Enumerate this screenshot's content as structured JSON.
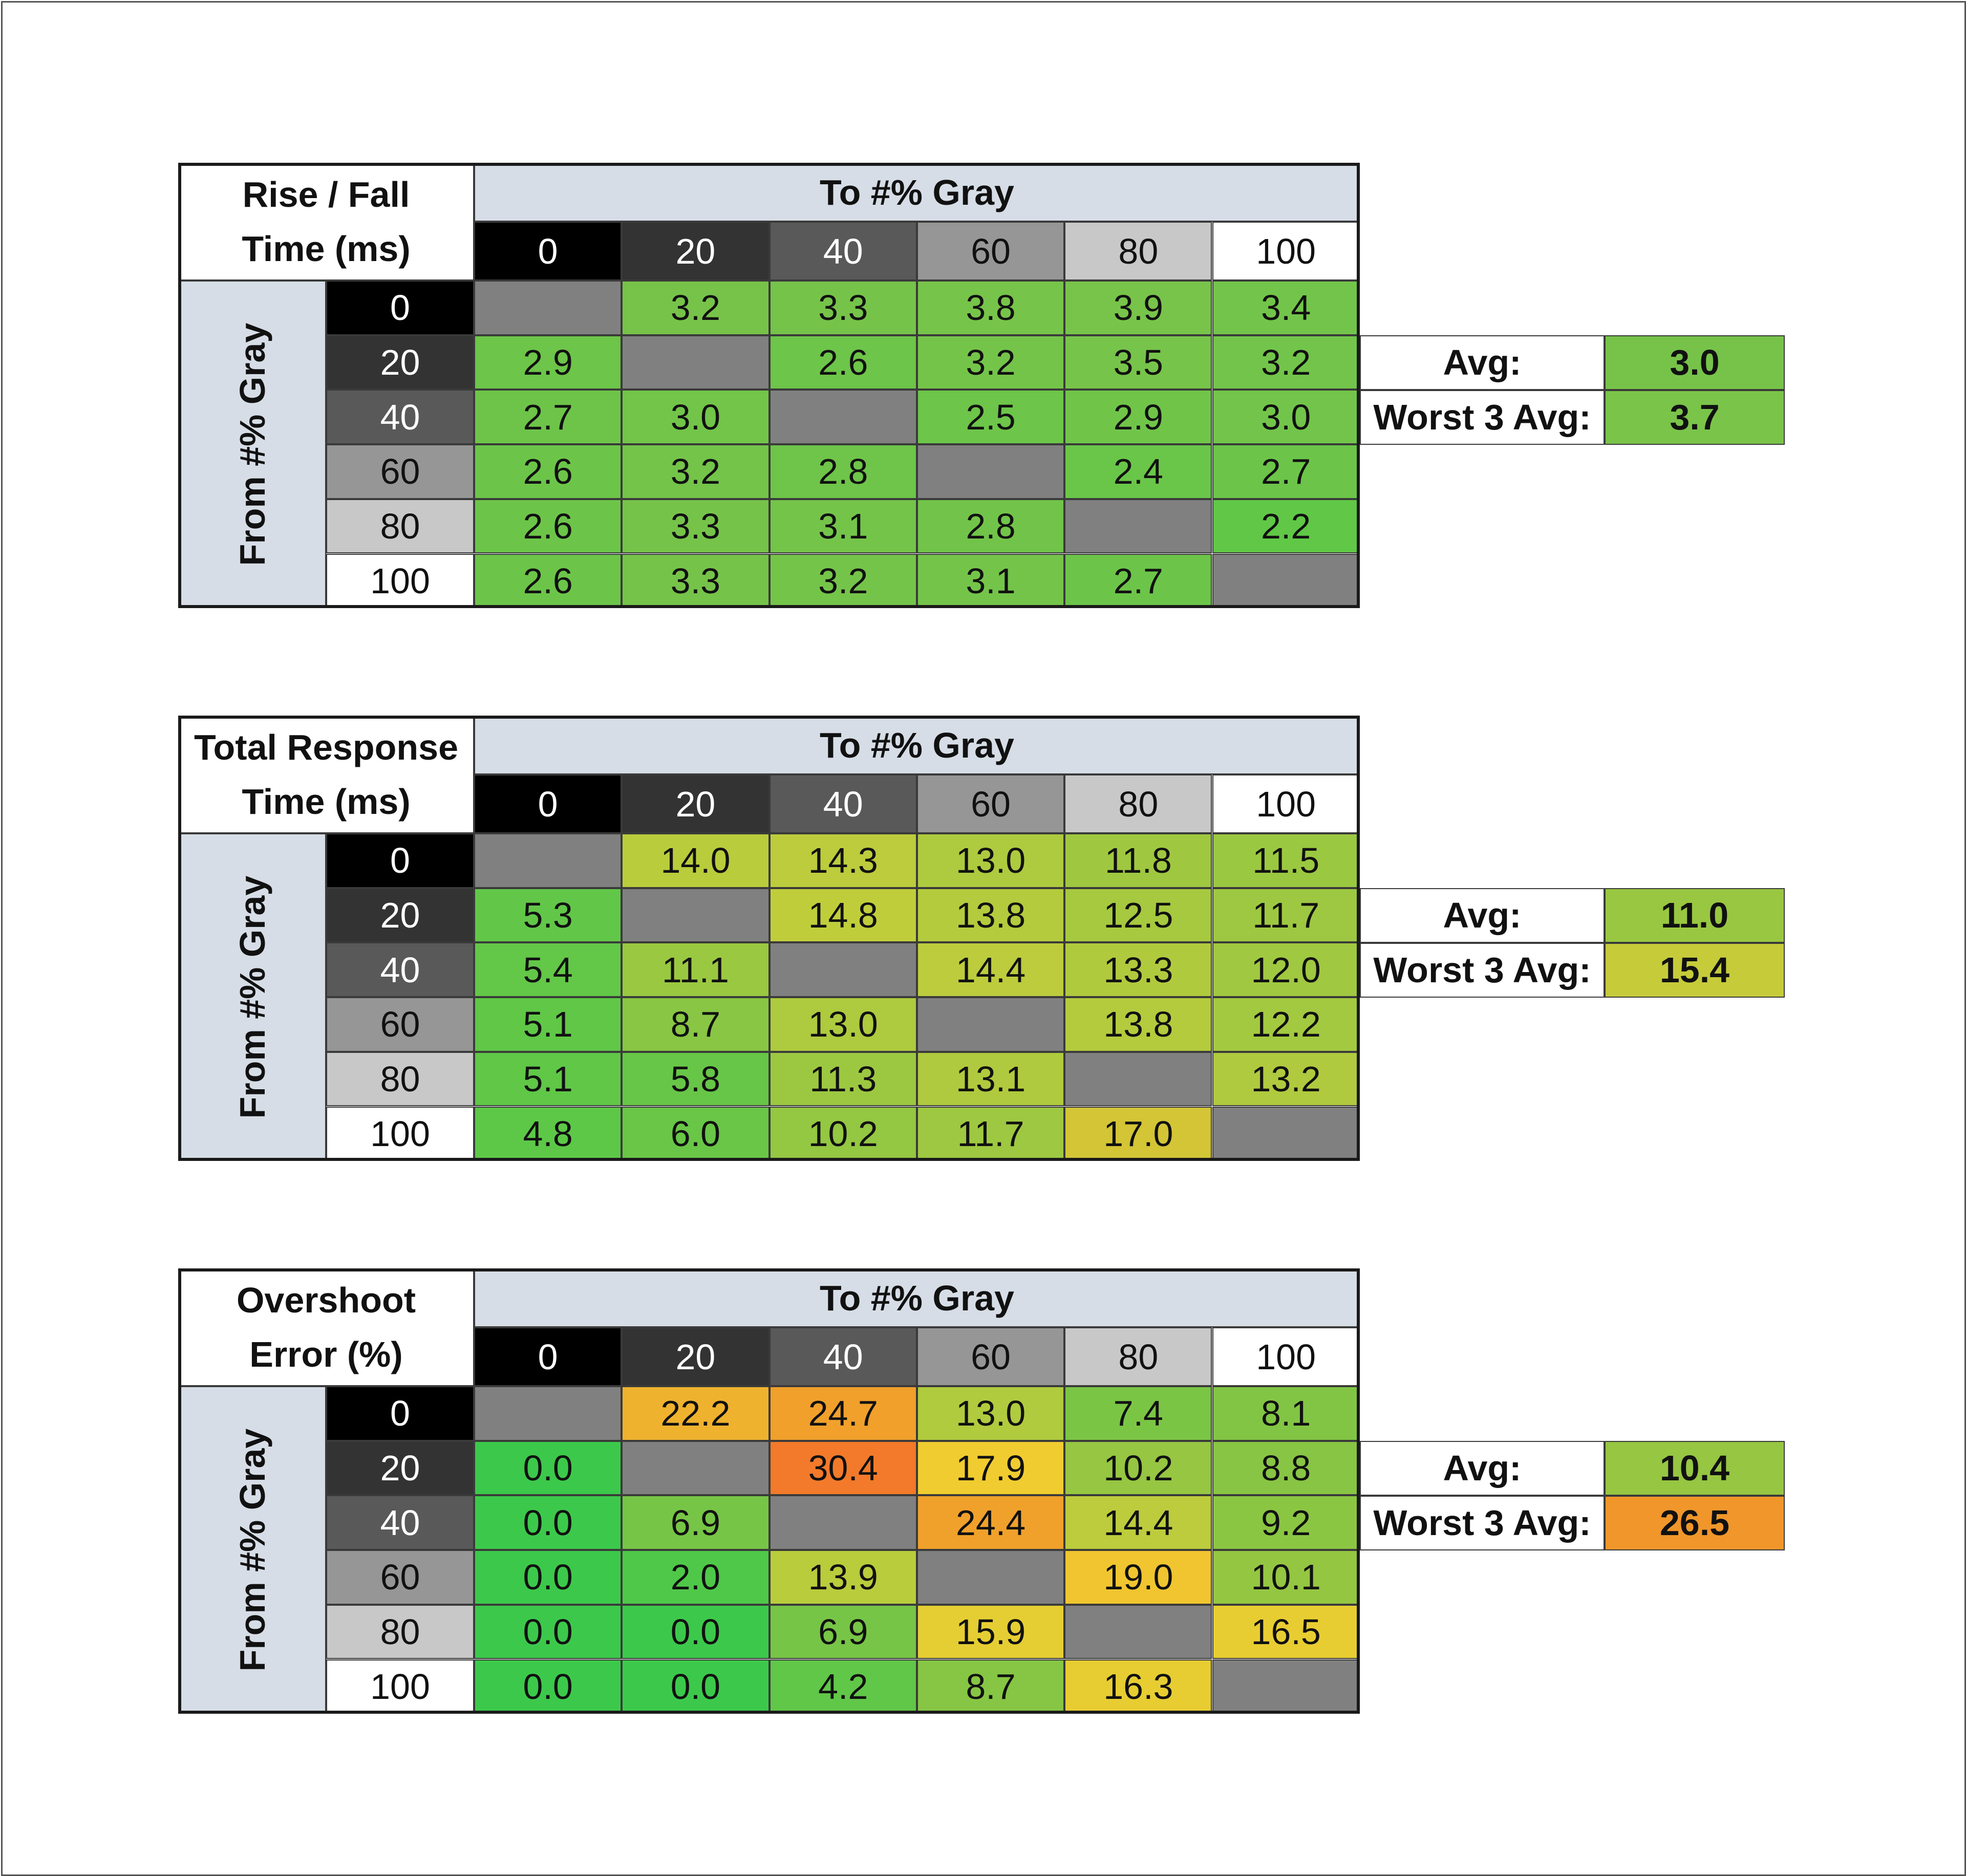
{
  "chart_data": [
    {
      "type": "heatmap",
      "title_lines": [
        "Rise / Fall",
        "Time (ms)"
      ],
      "column_header": "To #% Gray",
      "row_header": "From #% Gray",
      "columns": [
        "0",
        "20",
        "40",
        "60",
        "80",
        "100"
      ],
      "rows": [
        "0",
        "20",
        "40",
        "60",
        "80",
        "100"
      ],
      "values": [
        [
          null,
          "3.2",
          "3.3",
          "3.8",
          "3.9",
          "3.4"
        ],
        [
          "2.9",
          null,
          "2.6",
          "3.2",
          "3.5",
          "3.2"
        ],
        [
          "2.7",
          "3.0",
          null,
          "2.5",
          "2.9",
          "3.0"
        ],
        [
          "2.6",
          "3.2",
          "2.8",
          null,
          "2.4",
          "2.7"
        ],
        [
          "2.6",
          "3.3",
          "3.1",
          "2.8",
          null,
          "2.2"
        ],
        [
          "2.6",
          "3.3",
          "3.2",
          "3.1",
          "2.7",
          null
        ]
      ],
      "colors": [
        [
          "#808080",
          "#77c34a",
          "#76c34a",
          "#77c44a",
          "#78c44a",
          "#72c54a"
        ],
        [
          "#6dc549",
          "#808080",
          "#6dc549",
          "#75c44a",
          "#77c44a",
          "#72c54a"
        ],
        [
          "#6ec449",
          "#72c549",
          "#808080",
          "#6dc549",
          "#70c549",
          "#72c54a"
        ],
        [
          "#6cc549",
          "#74c44a",
          "#6ec549",
          "#808080",
          "#6ac649",
          "#6cc549"
        ],
        [
          "#6cc549",
          "#76c34a",
          "#74c44a",
          "#71c449",
          "#808080",
          "#60c846"
        ],
        [
          "#6cc549",
          "#76c34a",
          "#75c44a",
          "#74c44a",
          "#6cc549",
          "#808080"
        ]
      ],
      "summary": {
        "avg_label": "Avg:",
        "avg": "3.0",
        "avg_color": "#77c34a",
        "worst_label": "Worst 3 Avg:",
        "worst": "3.7",
        "worst_color": "#7ac44a"
      }
    },
    {
      "type": "heatmap",
      "title_lines": [
        "Total Response",
        "Time (ms)"
      ],
      "column_header": "To #% Gray",
      "row_header": "From #% Gray",
      "columns": [
        "0",
        "20",
        "40",
        "60",
        "80",
        "100"
      ],
      "rows": [
        "0",
        "20",
        "40",
        "60",
        "80",
        "100"
      ],
      "values": [
        [
          null,
          "14.0",
          "14.3",
          "13.0",
          "11.8",
          "11.5"
        ],
        [
          "5.3",
          null,
          "14.8",
          "13.8",
          "12.5",
          "11.7"
        ],
        [
          "5.4",
          "11.1",
          null,
          "14.4",
          "13.3",
          "12.0"
        ],
        [
          "5.1",
          "8.7",
          "13.0",
          null,
          "13.8",
          "12.2"
        ],
        [
          "5.1",
          "5.8",
          "11.3",
          "13.1",
          null,
          "13.2"
        ],
        [
          "4.8",
          "6.0",
          "10.2",
          "11.7",
          "17.0",
          null
        ]
      ],
      "colors": [
        [
          "#808080",
          "#b9cc3c",
          "#bccc3c",
          "#aeca3e",
          "#9fc840",
          "#9bc841"
        ],
        [
          "#62c748",
          "#808080",
          "#c0cd3b",
          "#b4cb3d",
          "#a6c93f",
          "#9ec841"
        ],
        [
          "#63c748",
          "#9ac841",
          "#808080",
          "#bccc3c",
          "#b0ca3e",
          "#a0c840"
        ],
        [
          "#60c747",
          "#88c644",
          "#aeca3e",
          "#808080",
          "#b4cb3d",
          "#a3c940"
        ],
        [
          "#60c747",
          "#67c647",
          "#9cc841",
          "#afca3e",
          "#808080",
          "#afca3e"
        ],
        [
          "#5dc847",
          "#69c647",
          "#94c742",
          "#9ec841",
          "#d3c535",
          "#808080"
        ]
      ],
      "summary": {
        "avg_label": "Avg:",
        "avg": "11.0",
        "avg_color": "#99c741",
        "worst_label": "Worst 3 Avg:",
        "worst": "15.4",
        "worst_color": "#c6cb3a"
      }
    },
    {
      "type": "heatmap",
      "title_lines": [
        "Overshoot",
        "Error (%)"
      ],
      "column_header": "To #% Gray",
      "row_header": "From #% Gray",
      "columns": [
        "0",
        "20",
        "40",
        "60",
        "80",
        "100"
      ],
      "rows": [
        "0",
        "20",
        "40",
        "60",
        "80",
        "100"
      ],
      "values": [
        [
          null,
          "22.2",
          "24.7",
          "13.0",
          "7.4",
          "8.1"
        ],
        [
          "0.0",
          null,
          "30.4",
          "17.9",
          "10.2",
          "8.8"
        ],
        [
          "0.0",
          "6.9",
          null,
          "24.4",
          "14.4",
          "9.2"
        ],
        [
          "0.0",
          "2.0",
          "13.9",
          null,
          "19.0",
          "10.1"
        ],
        [
          "0.0",
          "0.0",
          "6.9",
          "15.9",
          null,
          "16.5"
        ],
        [
          "0.0",
          "0.0",
          "4.2",
          "8.7",
          "16.3",
          null
        ]
      ],
      "colors": [
        [
          "#808080",
          "#efb22e",
          "#f0a02b",
          "#b0cb3e",
          "#7bc545",
          "#82c544"
        ],
        [
          "#3cc94b",
          "#808080",
          "#f27a2a",
          "#f0cc30",
          "#96c642",
          "#88c544"
        ],
        [
          "#3cc94b",
          "#77c546",
          "#808080",
          "#f0a12b",
          "#bccc3c",
          "#8bc643"
        ],
        [
          "#3cc94b",
          "#4fc849",
          "#b9cc3c",
          "#808080",
          "#f0c52f",
          "#94c642"
        ],
        [
          "#3cc94b",
          "#3cc94b",
          "#77c546",
          "#e5ce33",
          "#808080",
          "#e8cd32"
        ],
        [
          "#3cc94b",
          "#3cc94b",
          "#61c748",
          "#86c644",
          "#e7cd32",
          "#808080"
        ]
      ],
      "summary": {
        "avg_label": "Avg:",
        "avg": "10.4",
        "avg_color": "#96c642",
        "worst_label": "Worst 3 Avg:",
        "worst": "26.5",
        "worst_color": "#f0962b"
      }
    }
  ]
}
